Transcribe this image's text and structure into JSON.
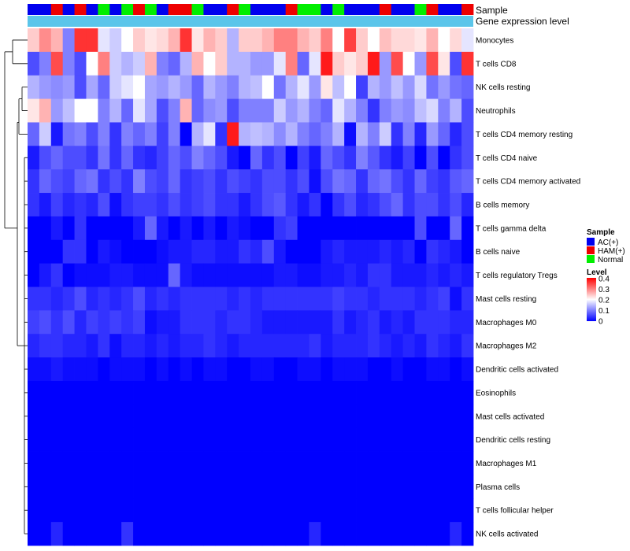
{
  "chart_data": {
    "type": "heatmap",
    "annotation_rows": [
      "Sample",
      "Gene expression level"
    ],
    "row_labels": [
      "Monocytes",
      "T cells CD8",
      "NK cells resting",
      "Neutrophils",
      "T cells CD4 memory resting",
      "T cells CD4 naive",
      "T cells CD4 memory activated",
      "B cells memory",
      "T cells gamma delta",
      "B cells naive",
      "T cells regulatory  Tregs",
      "Mast cells resting",
      "Macrophages M0",
      "Macrophages M2",
      "Dendritic cells activated",
      "Eosinophils",
      "Mast cells activated",
      "Dendritic cells resting",
      "Macrophages M1",
      "Plasma cells",
      "T cells follicular helper",
      "NK cells activated"
    ],
    "sample_groups": [
      "AC",
      "AC",
      "HAM",
      "AC",
      "HAM",
      "AC",
      "Normal",
      "AC",
      "Normal",
      "HAM",
      "Normal",
      "AC",
      "HAM",
      "HAM",
      "Normal",
      "AC",
      "AC",
      "HAM",
      "Normal",
      "AC",
      "AC",
      "AC",
      "HAM",
      "Normal",
      "Normal",
      "AC",
      "Normal",
      "AC",
      "AC",
      "AC",
      "HAM",
      "AC",
      "AC",
      "Normal",
      "HAM",
      "AC",
      "AC",
      "HAM"
    ],
    "expression_values": [
      [
        0.24,
        0.29,
        0.26,
        0.1,
        0.36,
        0.36,
        0.18,
        0.16,
        0.2,
        0.24,
        0.22,
        0.23,
        0.26,
        0.36,
        0.22,
        0.26,
        0.24,
        0.14,
        0.24,
        0.24,
        0.26,
        0.3,
        0.3,
        0.26,
        0.24,
        0.3,
        0.2,
        0.35,
        0.24,
        0.2,
        0.25,
        0.23,
        0.23,
        0.22,
        0.26,
        0.2,
        0.23,
        0.18
      ],
      [
        0.06,
        0.1,
        0.34,
        0.1,
        0.06,
        0.2,
        0.3,
        0.16,
        0.14,
        0.16,
        0.26,
        0.1,
        0.08,
        0.14,
        0.26,
        0.2,
        0.24,
        0.14,
        0.14,
        0.12,
        0.12,
        0.18,
        0.3,
        0.08,
        0.18,
        0.38,
        0.24,
        0.22,
        0.24,
        0.38,
        0.12,
        0.34,
        0.2,
        0.12,
        0.34,
        0.22,
        0.06,
        0.36
      ],
      [
        0.14,
        0.12,
        0.11,
        0.12,
        0.06,
        0.13,
        0.08,
        0.16,
        0.18,
        0.2,
        0.13,
        0.12,
        0.14,
        0.12,
        0.08,
        0.14,
        0.12,
        0.1,
        0.14,
        0.15,
        0.2,
        0.09,
        0.14,
        0.18,
        0.12,
        0.22,
        0.15,
        0.2,
        0.05,
        0.14,
        0.12,
        0.15,
        0.12,
        0.17,
        0.09,
        0.12,
        0.09,
        0.08
      ],
      [
        0.22,
        0.26,
        0.12,
        0.15,
        0.2,
        0.2,
        0.1,
        0.14,
        0.08,
        0.18,
        0.13,
        0.06,
        0.1,
        0.26,
        0.08,
        0.11,
        0.12,
        0.06,
        0.1,
        0.1,
        0.1,
        0.16,
        0.12,
        0.14,
        0.1,
        0.08,
        0.18,
        0.14,
        0.1,
        0.04,
        0.1,
        0.12,
        0.11,
        0.15,
        0.17,
        0.1,
        0.14,
        0.06
      ],
      [
        0.08,
        0.16,
        0.02,
        0.09,
        0.1,
        0.06,
        0.1,
        0.04,
        0.1,
        0.08,
        0.1,
        0.05,
        0.1,
        0.0,
        0.14,
        0.18,
        0.04,
        0.38,
        0.14,
        0.15,
        0.14,
        0.11,
        0.14,
        0.1,
        0.08,
        0.1,
        0.14,
        0.01,
        0.14,
        0.1,
        0.16,
        0.04,
        0.1,
        0.03,
        0.12,
        0.08,
        0.03,
        0.06
      ],
      [
        0.02,
        0.06,
        0.08,
        0.06,
        0.06,
        0.04,
        0.09,
        0.04,
        0.08,
        0.04,
        0.03,
        0.05,
        0.08,
        0.06,
        0.1,
        0.08,
        0.06,
        0.02,
        0.0,
        0.08,
        0.04,
        0.06,
        0.0,
        0.05,
        0.02,
        0.08,
        0.06,
        0.04,
        0.1,
        0.07,
        0.04,
        0.02,
        0.05,
        0.0,
        0.06,
        0.0,
        0.04,
        0.06
      ],
      [
        0.04,
        0.08,
        0.06,
        0.05,
        0.08,
        0.09,
        0.04,
        0.06,
        0.04,
        0.1,
        0.06,
        0.05,
        0.08,
        0.04,
        0.05,
        0.06,
        0.04,
        0.06,
        0.05,
        0.04,
        0.06,
        0.06,
        0.04,
        0.06,
        0.01,
        0.06,
        0.09,
        0.08,
        0.04,
        0.08,
        0.09,
        0.06,
        0.04,
        0.08,
        0.05,
        0.04,
        0.07,
        0.08
      ],
      [
        0.04,
        0.02,
        0.05,
        0.03,
        0.04,
        0.03,
        0.06,
        0.01,
        0.04,
        0.05,
        0.05,
        0.04,
        0.06,
        0.04,
        0.05,
        0.06,
        0.04,
        0.04,
        0.02,
        0.04,
        0.06,
        0.07,
        0.04,
        0.02,
        0.04,
        0.0,
        0.04,
        0.06,
        0.03,
        0.04,
        0.06,
        0.08,
        0.04,
        0.06,
        0.06,
        0.04,
        0.06,
        0.03
      ],
      [
        0.0,
        0.0,
        0.02,
        0.0,
        0.04,
        0.0,
        0.0,
        0.0,
        0.0,
        0.02,
        0.08,
        0.02,
        0.0,
        0.02,
        0.0,
        0.02,
        0.0,
        0.02,
        0.01,
        0.0,
        0.0,
        0.04,
        0.05,
        0.0,
        0.0,
        0.0,
        0.0,
        0.0,
        0.0,
        0.0,
        0.0,
        0.0,
        0.0,
        0.06,
        0.0,
        0.0,
        0.08,
        0.0
      ],
      [
        0.0,
        0.0,
        0.0,
        0.04,
        0.04,
        0.0,
        0.02,
        0.01,
        0.0,
        0.0,
        0.0,
        0.01,
        0.02,
        0.02,
        0.03,
        0.03,
        0.02,
        0.02,
        0.04,
        0.03,
        0.06,
        0.02,
        0.0,
        0.0,
        0.0,
        0.02,
        0.03,
        0.02,
        0.02,
        0.02,
        0.03,
        0.02,
        0.03,
        0.0,
        0.04,
        0.03,
        0.02,
        0.0
      ],
      [
        0.0,
        0.02,
        0.04,
        0.0,
        0.01,
        0.01,
        0.01,
        0.02,
        0.02,
        0.01,
        0.01,
        0.01,
        0.08,
        0.02,
        0.01,
        0.01,
        0.01,
        0.01,
        0.01,
        0.01,
        0.01,
        0.02,
        0.02,
        0.01,
        0.01,
        0.02,
        0.02,
        0.03,
        0.02,
        0.04,
        0.04,
        0.02,
        0.02,
        0.02,
        0.03,
        0.02,
        0.03,
        0.02
      ],
      [
        0.04,
        0.04,
        0.03,
        0.04,
        0.06,
        0.03,
        0.04,
        0.03,
        0.04,
        0.06,
        0.03,
        0.04,
        0.03,
        0.04,
        0.04,
        0.04,
        0.04,
        0.03,
        0.04,
        0.03,
        0.04,
        0.04,
        0.04,
        0.04,
        0.04,
        0.04,
        0.05,
        0.04,
        0.04,
        0.03,
        0.04,
        0.04,
        0.04,
        0.03,
        0.04,
        0.05,
        0.01,
        0.04
      ],
      [
        0.05,
        0.06,
        0.04,
        0.06,
        0.03,
        0.05,
        0.04,
        0.05,
        0.04,
        0.05,
        0.01,
        0.02,
        0.02,
        0.04,
        0.04,
        0.04,
        0.03,
        0.04,
        0.04,
        0.03,
        0.02,
        0.02,
        0.02,
        0.02,
        0.02,
        0.02,
        0.04,
        0.02,
        0.03,
        0.04,
        0.02,
        0.03,
        0.02,
        0.04,
        0.04,
        0.04,
        0.03,
        0.03
      ],
      [
        0.03,
        0.04,
        0.04,
        0.03,
        0.03,
        0.02,
        0.04,
        0.01,
        0.03,
        0.03,
        0.02,
        0.03,
        0.02,
        0.03,
        0.03,
        0.04,
        0.03,
        0.02,
        0.03,
        0.03,
        0.03,
        0.03,
        0.03,
        0.03,
        0.04,
        0.02,
        0.03,
        0.03,
        0.03,
        0.04,
        0.03,
        0.02,
        0.03,
        0.02,
        0.04,
        0.03,
        0.02,
        0.04
      ],
      [
        0.01,
        0.01,
        0.02,
        0.01,
        0.01,
        0.01,
        0.0,
        0.01,
        0.01,
        0.01,
        0.0,
        0.01,
        0.0,
        0.01,
        0.0,
        0.01,
        0.01,
        0.0,
        0.0,
        0.01,
        0.01,
        0.0,
        0.0,
        0.01,
        0.01,
        0.0,
        0.01,
        0.01,
        0.01,
        0.0,
        0.0,
        0.01,
        0.0,
        0.0,
        0.01,
        0.01,
        0.0,
        0.01
      ],
      [
        0,
        0,
        0,
        0,
        0,
        0,
        0,
        0,
        0,
        0,
        0,
        0,
        0,
        0,
        0,
        0,
        0,
        0,
        0,
        0,
        0,
        0,
        0,
        0,
        0,
        0,
        0,
        0,
        0,
        0,
        0,
        0,
        0,
        0,
        0,
        0,
        0,
        0
      ],
      [
        0,
        0,
        0,
        0,
        0,
        0,
        0,
        0,
        0,
        0,
        0,
        0,
        0,
        0,
        0,
        0,
        0,
        0,
        0,
        0,
        0,
        0,
        0,
        0,
        0,
        0,
        0,
        0,
        0,
        0,
        0,
        0,
        0,
        0,
        0,
        0,
        0,
        0
      ],
      [
        0,
        0,
        0,
        0,
        0,
        0,
        0,
        0,
        0,
        0,
        0,
        0,
        0,
        0,
        0,
        0,
        0,
        0,
        0,
        0,
        0,
        0,
        0,
        0,
        0,
        0,
        0,
        0,
        0,
        0,
        0,
        0,
        0,
        0,
        0,
        0,
        0,
        0
      ],
      [
        0,
        0,
        0,
        0,
        0,
        0,
        0,
        0,
        0,
        0,
        0,
        0,
        0,
        0,
        0,
        0,
        0,
        0,
        0,
        0,
        0,
        0,
        0,
        0,
        0,
        0,
        0,
        0,
        0,
        0,
        0,
        0,
        0,
        0,
        0,
        0,
        0,
        0
      ],
      [
        0,
        0,
        0,
        0,
        0,
        0,
        0,
        0,
        0,
        0,
        0,
        0,
        0,
        0,
        0,
        0,
        0,
        0,
        0,
        0,
        0,
        0,
        0,
        0,
        0,
        0,
        0,
        0,
        0,
        0,
        0,
        0,
        0,
        0,
        0,
        0,
        0,
        0
      ],
      [
        0,
        0,
        0,
        0,
        0,
        0,
        0,
        0,
        0,
        0,
        0,
        0,
        0,
        0,
        0,
        0,
        0,
        0,
        0,
        0,
        0,
        0,
        0,
        0,
        0,
        0,
        0,
        0,
        0,
        0,
        0,
        0,
        0,
        0,
        0,
        0,
        0,
        0
      ],
      [
        0.0,
        0.0,
        0.03,
        0.0,
        0.0,
        0.0,
        0.0,
        0.0,
        0.04,
        0.0,
        0.0,
        0.0,
        0.0,
        0.0,
        0.0,
        0.0,
        0.0,
        0.0,
        0.0,
        0.0,
        0.0,
        0.0,
        0.0,
        0.0,
        0.03,
        0.0,
        0.0,
        0.0,
        0.0,
        0.0,
        0.0,
        0.0,
        0.0,
        0.0,
        0.0,
        0.0,
        0.03,
        0.0
      ]
    ],
    "color_scale": {
      "min": 0,
      "mid": 0.2,
      "max": 0.4,
      "low_color": "#0000ff",
      "mid_color": "#ffffff",
      "high_color": "#ff0000"
    },
    "legend": {
      "sample_title": "Sample",
      "groups": [
        {
          "key": "AC",
          "label": "AC(+)",
          "color": "#0000ee"
        },
        {
          "key": "HAM",
          "label": "HAM(+)",
          "color": "#ee0000"
        },
        {
          "key": "Normal",
          "label": "Normal",
          "color": "#00ee00"
        }
      ],
      "level_title": "Level",
      "level_ticks": [
        "0.4",
        "0.3",
        "0.2",
        "0.1",
        "0"
      ]
    },
    "annotation_bar_color": "#5bc5ea",
    "placement": "legend right-center"
  }
}
